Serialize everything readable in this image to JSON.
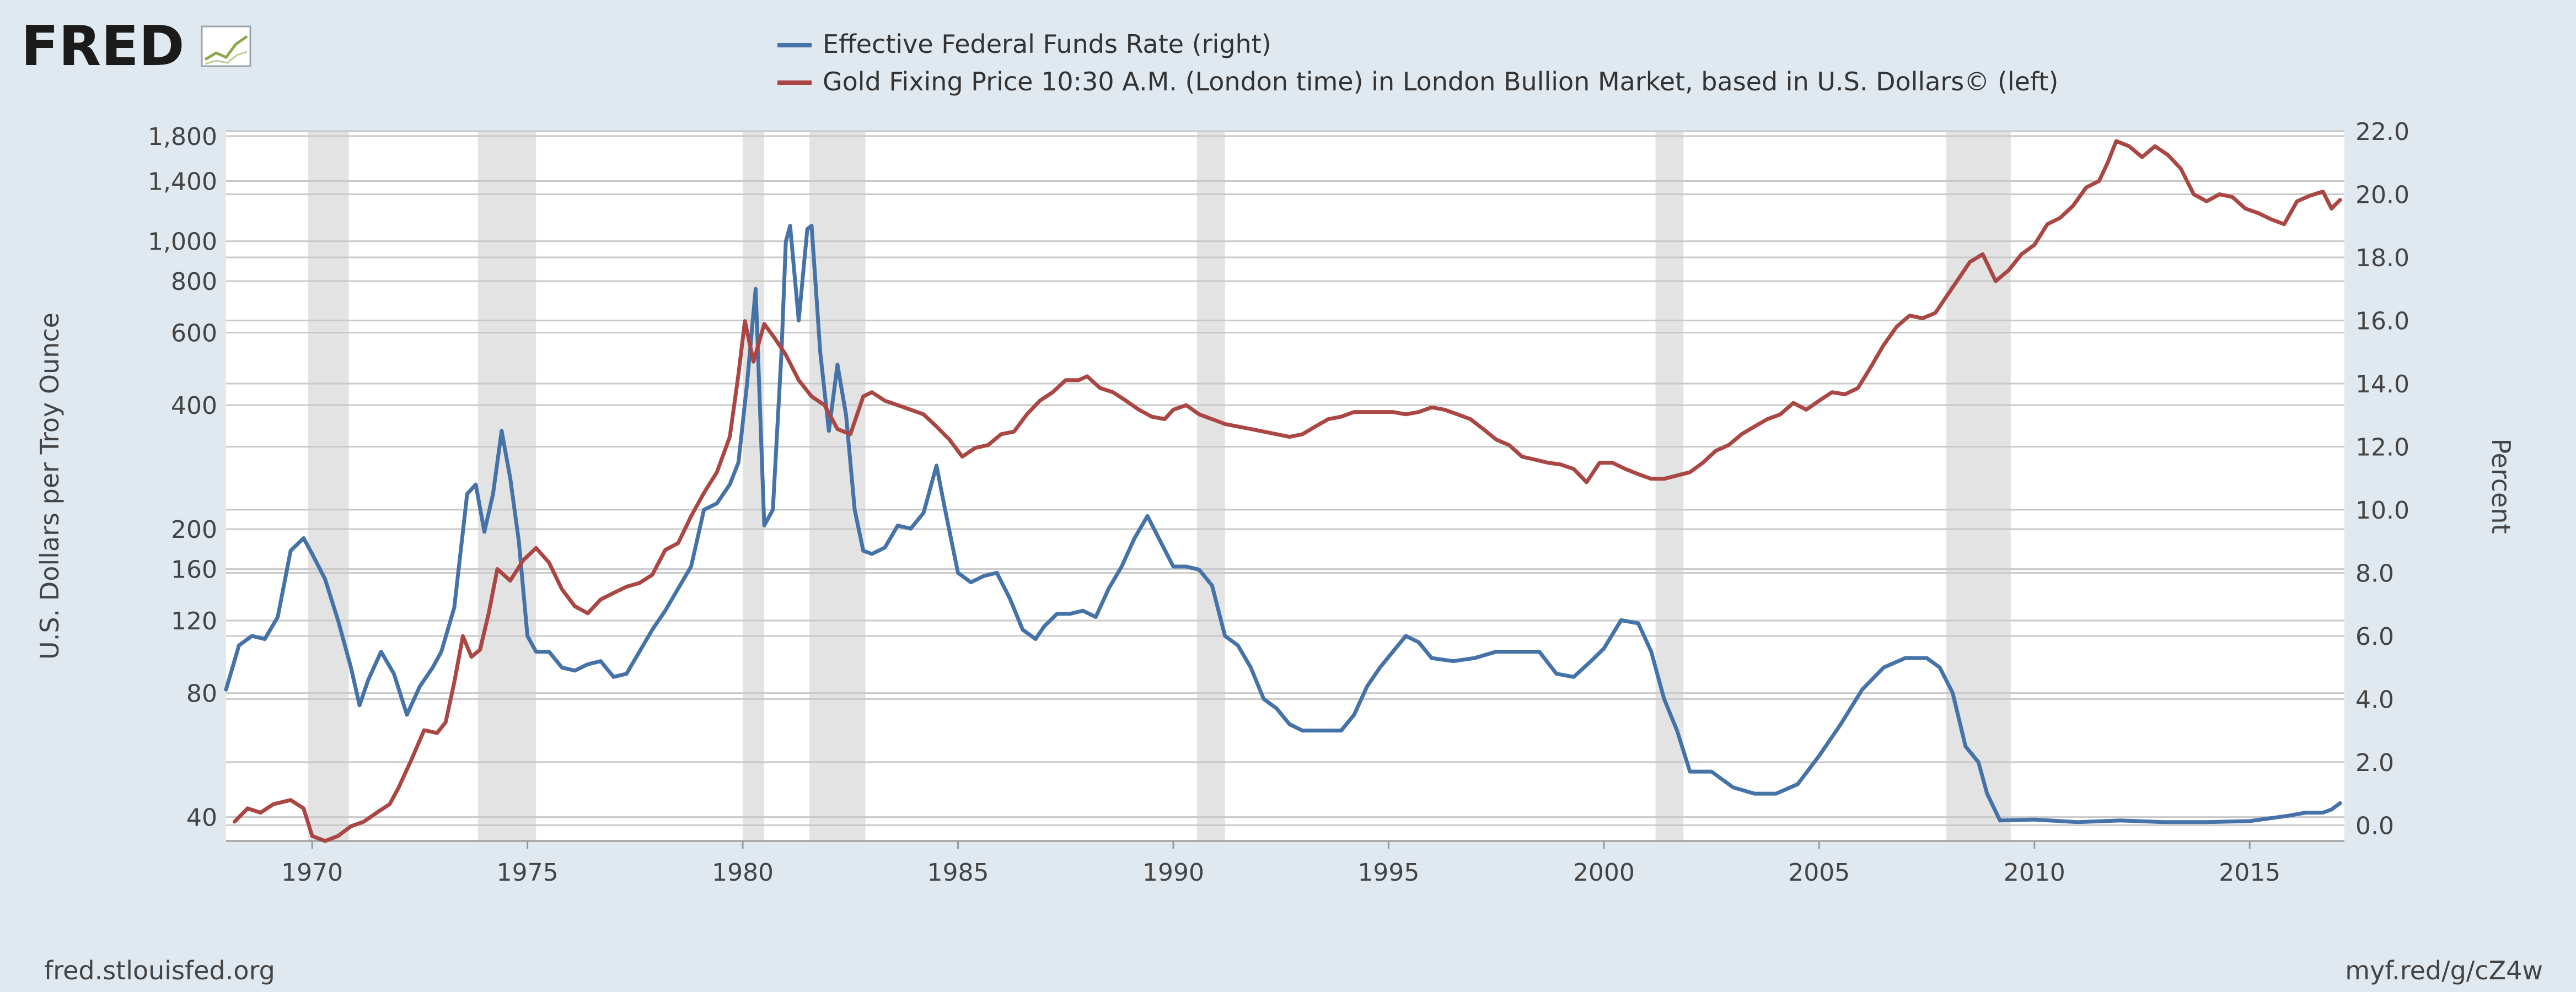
{
  "brand": {
    "name": "FRED",
    "color": "#1b1b1b",
    "accent_green": "#8aa84a"
  },
  "footer": {
    "source_left": "fred.stlouisfed.org",
    "source_right": "myf.red/g/cZ4w"
  },
  "colors": {
    "background": "#e1e9f0",
    "plot_bg": "#ffffff",
    "recession": "#e3e3e3",
    "grid": "#c9c9c9",
    "axis_text": "#444444",
    "fed_funds": "#4572a7",
    "gold": "#aa4643"
  },
  "chart_data": {
    "type": "line",
    "legend_placement": "top-center",
    "grid": true,
    "x_range": [
      1968.0,
      2017.2
    ],
    "x_ticks": [
      1970,
      1975,
      1980,
      1985,
      1990,
      1995,
      2000,
      2005,
      2010,
      2015
    ],
    "left_axis": {
      "label": "U.S. Dollars per Troy Ounce",
      "scale": "log",
      "range": [
        35,
        1850
      ],
      "ticks": [
        40,
        80,
        120,
        160,
        200,
        400,
        600,
        800,
        1000,
        1400,
        1800
      ],
      "tick_labels": [
        "40",
        "80",
        "120",
        "160",
        "200",
        "400",
        "600",
        "800",
        "1,000",
        "1,400",
        "1,800"
      ]
    },
    "right_axis": {
      "label": "Percent",
      "scale": "linear",
      "range": [
        -0.5,
        22
      ],
      "ticks": [
        0,
        2,
        4,
        6,
        8,
        10,
        12,
        14,
        16,
        18,
        20,
        22
      ],
      "tick_labels": [
        "0.0",
        "2.0",
        "4.0",
        "6.0",
        "8.0",
        "10.0",
        "12.0",
        "14.0",
        "16.0",
        "18.0",
        "20.0",
        "22.0"
      ]
    },
    "recessions": [
      [
        1969.9,
        1970.85
      ],
      [
        1973.85,
        1975.2
      ],
      [
        1980.0,
        1980.5
      ],
      [
        1981.55,
        1982.85
      ],
      [
        1990.55,
        1991.2
      ],
      [
        2001.2,
        2001.85
      ],
      [
        2007.95,
        2009.45
      ]
    ],
    "series": [
      {
        "name": "Effective Federal Funds Rate (right)",
        "axis": "right",
        "color": "#4572a7",
        "x": [
          1968.0,
          1968.3,
          1968.6,
          1968.9,
          1969.2,
          1969.5,
          1969.8,
          1970.0,
          1970.3,
          1970.6,
          1970.9,
          1971.1,
          1971.3,
          1971.6,
          1971.9,
          1972.2,
          1972.5,
          1972.8,
          1973.0,
          1973.3,
          1973.6,
          1973.8,
          1974.0,
          1974.2,
          1974.4,
          1974.6,
          1974.8,
          1975.0,
          1975.2,
          1975.5,
          1975.8,
          1976.1,
          1976.4,
          1976.7,
          1977.0,
          1977.3,
          1977.6,
          1977.9,
          1978.2,
          1978.5,
          1978.8,
          1979.1,
          1979.4,
          1979.7,
          1979.9,
          1980.1,
          1980.3,
          1980.5,
          1980.7,
          1980.9,
          1981.0,
          1981.1,
          1981.3,
          1981.5,
          1981.6,
          1981.8,
          1982.0,
          1982.2,
          1982.4,
          1982.6,
          1982.8,
          1983.0,
          1983.3,
          1983.6,
          1983.9,
          1984.2,
          1984.5,
          1984.7,
          1985.0,
          1985.3,
          1985.6,
          1985.9,
          1986.2,
          1986.5,
          1986.8,
          1987.0,
          1987.3,
          1987.6,
          1987.9,
          1988.2,
          1988.5,
          1988.8,
          1989.1,
          1989.4,
          1989.7,
          1990.0,
          1990.3,
          1990.6,
          1990.9,
          1991.2,
          1991.5,
          1991.8,
          1992.1,
          1992.4,
          1992.7,
          1993.0,
          1993.3,
          1993.6,
          1993.9,
          1994.2,
          1994.5,
          1994.8,
          1995.1,
          1995.4,
          1995.7,
          1996.0,
          1996.5,
          1997.0,
          1997.5,
          1998.0,
          1998.5,
          1998.9,
          1999.3,
          1999.7,
          2000.0,
          2000.4,
          2000.8,
          2001.1,
          2001.4,
          2001.7,
          2002.0,
          2002.5,
          2003.0,
          2003.5,
          2004.0,
          2004.5,
          2005.0,
          2005.5,
          2006.0,
          2006.5,
          2007.0,
          2007.5,
          2007.8,
          2008.1,
          2008.4,
          2008.7,
          2008.9,
          2009.2,
          2010.0,
          2011.0,
          2012.0,
          2013.0,
          2014.0,
          2015.0,
          2015.9,
          2016.3,
          2016.7,
          2016.9,
          2017.1
        ],
        "values": [
          4.3,
          5.7,
          6.0,
          5.9,
          6.6,
          8.7,
          9.1,
          8.6,
          7.8,
          6.5,
          5.0,
          3.8,
          4.6,
          5.5,
          4.8,
          3.5,
          4.4,
          5.0,
          5.5,
          6.9,
          10.5,
          10.8,
          9.3,
          10.5,
          12.5,
          11.0,
          9.0,
          6.0,
          5.5,
          5.5,
          5.0,
          4.9,
          5.1,
          5.2,
          4.7,
          4.8,
          5.5,
          6.2,
          6.8,
          7.5,
          8.2,
          10.0,
          10.2,
          10.8,
          11.5,
          14.0,
          17.0,
          9.5,
          10.0,
          15.0,
          18.5,
          19.0,
          16.0,
          18.9,
          19.0,
          15.0,
          12.5,
          14.6,
          13.0,
          10.0,
          8.7,
          8.6,
          8.8,
          9.5,
          9.4,
          9.9,
          11.4,
          10.0,
          8.0,
          7.7,
          7.9,
          8.0,
          7.2,
          6.2,
          5.9,
          6.3,
          6.7,
          6.7,
          6.8,
          6.6,
          7.5,
          8.2,
          9.1,
          9.8,
          9.0,
          8.2,
          8.2,
          8.1,
          7.6,
          6.0,
          5.7,
          5.0,
          4.0,
          3.7,
          3.2,
          3.0,
          3.0,
          3.0,
          3.0,
          3.5,
          4.4,
          5.0,
          5.5,
          6.0,
          5.8,
          5.3,
          5.2,
          5.3,
          5.5,
          5.5,
          5.5,
          4.8,
          4.7,
          5.2,
          5.6,
          6.5,
          6.4,
          5.5,
          4.0,
          3.0,
          1.7,
          1.7,
          1.2,
          1.0,
          1.0,
          1.3,
          2.2,
          3.2,
          4.3,
          5.0,
          5.3,
          5.3,
          5.0,
          4.2,
          2.5,
          2.0,
          1.0,
          0.15,
          0.18,
          0.1,
          0.15,
          0.1,
          0.1,
          0.13,
          0.3,
          0.4,
          0.4,
          0.5,
          0.7
        ]
      },
      {
        "name": "Gold Fixing Price 10:30 A.M. (London time) in London Bullion Market, based in U.S. Dollars© (left)",
        "axis": "left",
        "color": "#aa4643",
        "x": [
          1968.2,
          1968.5,
          1968.8,
          1969.1,
          1969.5,
          1969.8,
          1970.0,
          1970.3,
          1970.6,
          1970.9,
          1971.2,
          1971.5,
          1971.8,
          1972.0,
          1972.3,
          1972.6,
          1972.9,
          1973.1,
          1973.3,
          1973.5,
          1973.7,
          1973.9,
          1974.1,
          1974.3,
          1974.6,
          1974.9,
          1975.2,
          1975.5,
          1975.8,
          1976.1,
          1976.4,
          1976.7,
          1977.0,
          1977.3,
          1977.6,
          1977.9,
          1978.2,
          1978.5,
          1978.8,
          1979.1,
          1979.4,
          1979.7,
          1979.9,
          1980.05,
          1980.25,
          1980.5,
          1980.75,
          1981.0,
          1981.3,
          1981.6,
          1981.9,
          1982.2,
          1982.5,
          1982.8,
          1983.0,
          1983.3,
          1983.6,
          1983.9,
          1984.2,
          1984.5,
          1984.8,
          1985.1,
          1985.4,
          1985.7,
          1986.0,
          1986.3,
          1986.6,
          1986.9,
          1987.2,
          1987.5,
          1987.8,
          1988.0,
          1988.3,
          1988.6,
          1988.9,
          1989.2,
          1989.5,
          1989.8,
          1990.0,
          1990.3,
          1990.6,
          1990.9,
          1991.2,
          1991.5,
          1991.8,
          1992.1,
          1992.4,
          1992.7,
          1993.0,
          1993.3,
          1993.6,
          1993.9,
          1994.2,
          1994.5,
          1994.8,
          1995.1,
          1995.4,
          1995.7,
          1996.0,
          1996.3,
          1996.6,
          1996.9,
          1997.2,
          1997.5,
          1997.8,
          1998.1,
          1998.4,
          1998.7,
          1999.0,
          1999.3,
          1999.6,
          1999.9,
          2000.2,
          2000.5,
          2000.8,
          2001.1,
          2001.4,
          2001.7,
          2002.0,
          2002.3,
          2002.6,
          2002.9,
          2003.2,
          2003.5,
          2003.8,
          2004.1,
          2004.4,
          2004.7,
          2005.0,
          2005.3,
          2005.6,
          2005.9,
          2006.2,
          2006.5,
          2006.8,
          2007.1,
          2007.4,
          2007.7,
          2007.9,
          2008.2,
          2008.5,
          2008.8,
          2009.1,
          2009.4,
          2009.7,
          2010.0,
          2010.3,
          2010.6,
          2010.9,
          2011.2,
          2011.5,
          2011.7,
          2011.9,
          2012.2,
          2012.5,
          2012.8,
          2013.1,
          2013.4,
          2013.7,
          2014.0,
          2014.3,
          2014.6,
          2014.9,
          2015.2,
          2015.5,
          2015.8,
          2016.1,
          2016.4,
          2016.7,
          2016.9,
          2017.1
        ],
        "values": [
          39,
          42,
          41,
          43,
          44,
          42,
          36,
          35,
          36,
          38,
          39,
          41,
          43,
          47,
          55,
          65,
          64,
          68,
          85,
          110,
          98,
          102,
          125,
          160,
          150,
          168,
          180,
          166,
          143,
          130,
          125,
          135,
          140,
          145,
          148,
          155,
          178,
          185,
          215,
          245,
          275,
          335,
          475,
          640,
          510,
          630,
          580,
          530,
          460,
          420,
          400,
          350,
          340,
          420,
          430,
          410,
          400,
          390,
          380,
          355,
          330,
          300,
          315,
          320,
          340,
          345,
          380,
          410,
          430,
          460,
          460,
          470,
          440,
          430,
          410,
          390,
          375,
          370,
          390,
          400,
          380,
          370,
          360,
          355,
          350,
          345,
          340,
          335,
          340,
          355,
          370,
          375,
          385,
          385,
          385,
          385,
          380,
          385,
          395,
          390,
          380,
          370,
          350,
          330,
          320,
          300,
          295,
          290,
          287,
          280,
          260,
          290,
          290,
          280,
          272,
          265,
          265,
          270,
          275,
          290,
          310,
          320,
          340,
          355,
          370,
          380,
          405,
          390,
          410,
          430,
          425,
          440,
          495,
          560,
          620,
          660,
          650,
          670,
          720,
          800,
          890,
          930,
          800,
          850,
          930,
          980,
          1100,
          1140,
          1220,
          1350,
          1400,
          1550,
          1750,
          1700,
          1600,
          1700,
          1620,
          1500,
          1300,
          1250,
          1300,
          1280,
          1200,
          1170,
          1130,
          1100,
          1250,
          1290,
          1320,
          1200,
          1260
        ]
      }
    ]
  }
}
